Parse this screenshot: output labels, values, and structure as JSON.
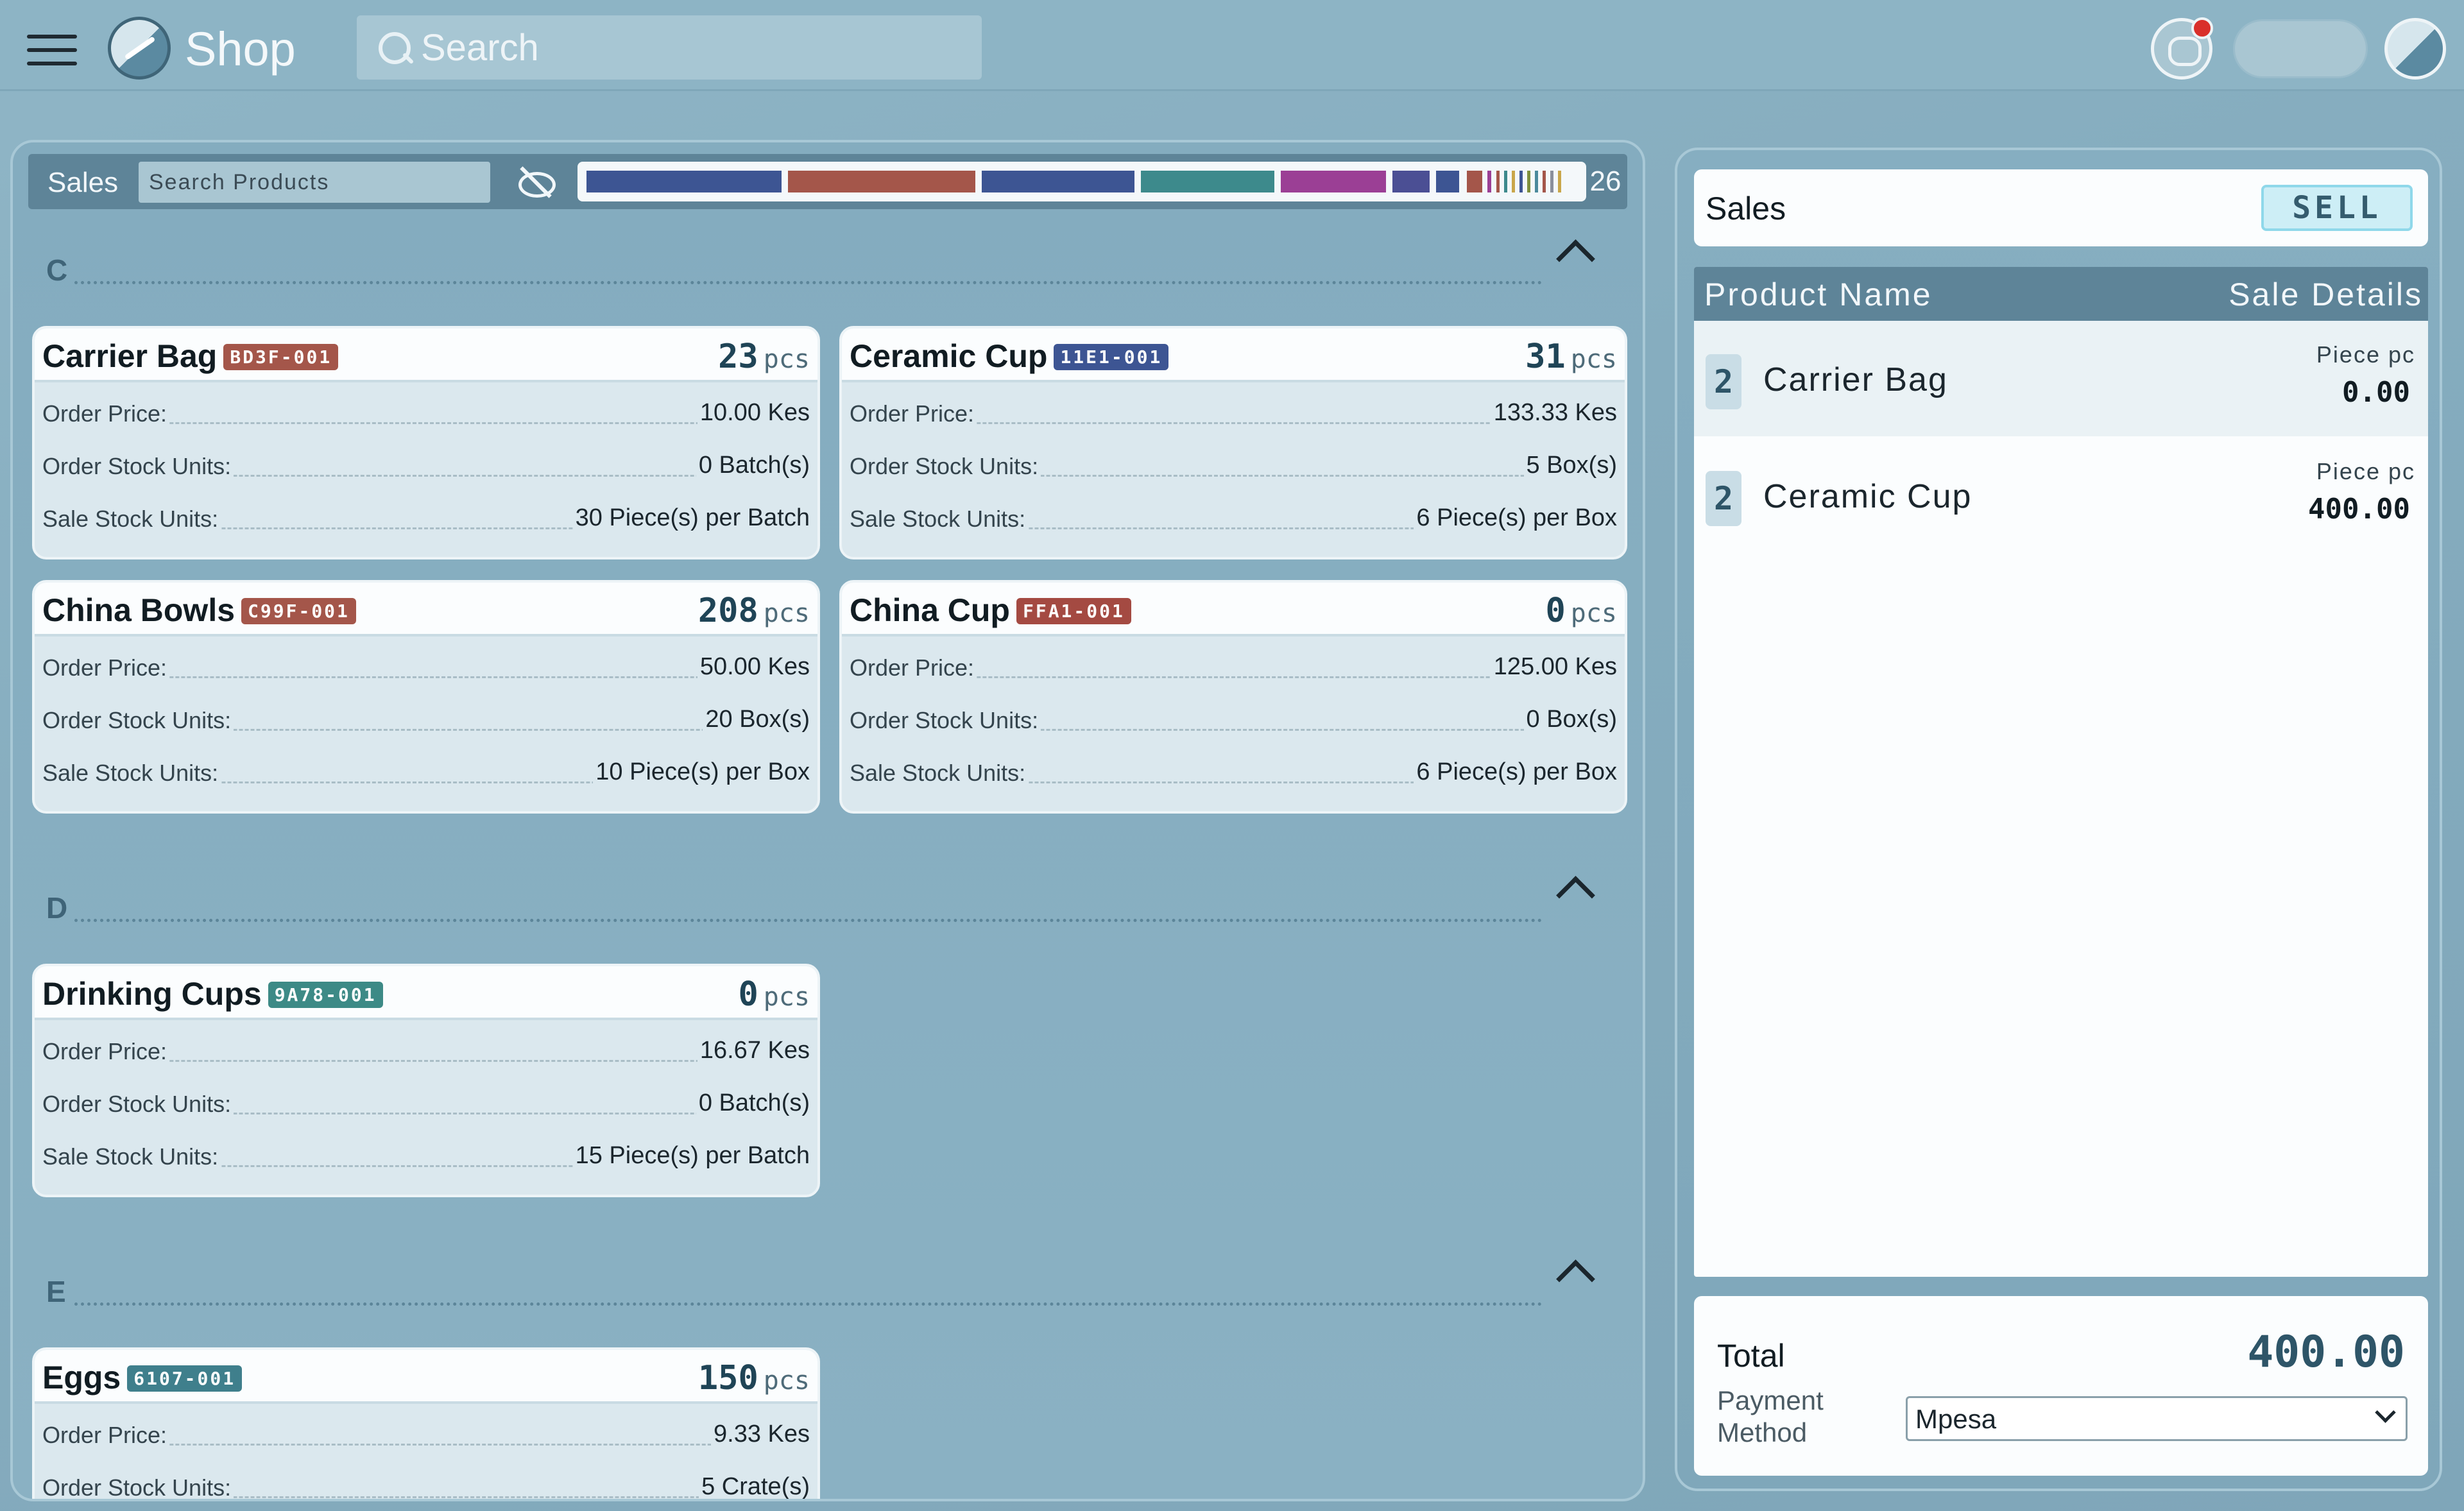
{
  "topbar": {
    "app_title": "Shop",
    "search_placeholder": "Search",
    "icons": [
      "menu-icon",
      "app-logo-icon",
      "search-icon",
      "chat-icon",
      "avatar-icon"
    ],
    "notification_color": "#d9302b"
  },
  "sales_panel": {
    "label": "Sales",
    "search_placeholder": "Search Products",
    "product_count": "26",
    "sections": [
      {
        "letter": "C",
        "products": [
          {
            "name": "Carrier Bag",
            "code": "BD3F-001",
            "code_color": "#a4564a",
            "qty": "23",
            "unit": "pcs",
            "rows": [
              {
                "label": "Order Price:",
                "value": "10.00 Kes"
              },
              {
                "label": "Order Stock Units:",
                "value": "0 Batch(s)"
              },
              {
                "label": "Sale Stock Units:",
                "value": "30 Piece(s) per Batch"
              }
            ]
          },
          {
            "name": "Ceramic Cup",
            "code": "11E1-001",
            "code_color": "#3d5593",
            "qty": "31",
            "unit": "pcs",
            "rows": [
              {
                "label": "Order Price:",
                "value": "133.33 Kes"
              },
              {
                "label": "Order Stock Units:",
                "value": "5 Box(s)"
              },
              {
                "label": "Sale Stock Units:",
                "value": "6 Piece(s) per Box"
              }
            ]
          },
          {
            "name": "China Bowls",
            "code": "C99F-001",
            "code_color": "#a4564a",
            "qty": "208",
            "unit": "pcs",
            "rows": [
              {
                "label": "Order Price:",
                "value": "50.00 Kes"
              },
              {
                "label": "Order Stock Units:",
                "value": "20 Box(s)"
              },
              {
                "label": "Sale Stock Units:",
                "value": "10 Piece(s) per Box"
              }
            ]
          },
          {
            "name": "China Cup",
            "code": "FFA1-001",
            "code_color": "#a44a42",
            "qty": "0",
            "unit": "pcs",
            "rows": [
              {
                "label": "Order Price:",
                "value": "125.00 Kes"
              },
              {
                "label": "Order Stock Units:",
                "value": "0 Box(s)"
              },
              {
                "label": "Sale Stock Units:",
                "value": "6 Piece(s) per Box"
              }
            ]
          }
        ]
      },
      {
        "letter": "D",
        "products": [
          {
            "name": "Drinking Cups",
            "code": "9A78-001",
            "code_color": "#3d8a86",
            "qty": "0",
            "unit": "pcs",
            "rows": [
              {
                "label": "Order Price:",
                "value": "16.67 Kes"
              },
              {
                "label": "Order Stock Units:",
                "value": "0 Batch(s)"
              },
              {
                "label": "Sale Stock Units:",
                "value": "15 Piece(s) per Batch"
              }
            ]
          }
        ]
      },
      {
        "letter": "E",
        "products": [
          {
            "name": "Eggs",
            "code": "6107-001",
            "code_color": "#3f7f8c",
            "qty": "150",
            "unit": "pcs",
            "rows": [
              {
                "label": "Order Price:",
                "value": "9.33 Kes"
              },
              {
                "label": "Order Stock Units:",
                "value": "5 Crate(s)"
              }
            ]
          }
        ]
      }
    ]
  },
  "cart": {
    "title": "Sales",
    "sell_label": "SELL",
    "col_product": "Product Name",
    "col_details": "Sale Details",
    "items": [
      {
        "qty": "2",
        "name": "Carrier Bag",
        "unit": "Piece pc",
        "price": "0.00"
      },
      {
        "qty": "2",
        "name": "Ceramic Cup",
        "unit": "Piece pc",
        "price": "400.00"
      }
    ],
    "total_label": "Total",
    "total_value": "400.00",
    "payment_label": "Payment Method",
    "payment_selected": "Mpesa"
  }
}
